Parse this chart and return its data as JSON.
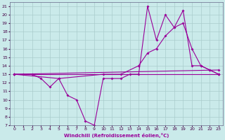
{
  "xlabel": "Windchill (Refroidissement éolien,°C)",
  "background_color": "#caeaea",
  "grid_color": "#aacccc",
  "line_color": "#990099",
  "xlim": [
    -0.5,
    23.5
  ],
  "ylim": [
    7,
    21.5
  ],
  "xticks": [
    0,
    1,
    2,
    3,
    4,
    5,
    6,
    7,
    8,
    9,
    10,
    11,
    12,
    13,
    14,
    15,
    16,
    17,
    18,
    19,
    20,
    21,
    22,
    23
  ],
  "yticks": [
    7,
    8,
    9,
    10,
    11,
    12,
    13,
    14,
    15,
    16,
    17,
    18,
    19,
    20,
    21
  ],
  "series": [
    {
      "x": [
        0,
        1,
        2,
        3,
        4,
        5,
        6,
        7,
        8,
        9,
        10,
        11,
        12,
        13,
        14,
        15,
        16,
        17,
        18,
        19,
        20,
        21,
        22,
        23
      ],
      "y": [
        13,
        13,
        13,
        12.5,
        11.5,
        12.5,
        10.5,
        10,
        7.5,
        7,
        12.5,
        12.5,
        12.5,
        13,
        13,
        21,
        17,
        20,
        18.5,
        20.5,
        14,
        14,
        13.5,
        13
      ]
    },
    {
      "x": [
        0,
        23
      ],
      "y": [
        13,
        13
      ]
    },
    {
      "x": [
        0,
        5,
        10,
        12,
        14,
        15,
        16,
        17,
        18,
        19,
        20,
        21,
        22,
        23
      ],
      "y": [
        13,
        12.5,
        13,
        13,
        14,
        15.5,
        16,
        17.5,
        18.5,
        19,
        16,
        14,
        13.5,
        13
      ]
    },
    {
      "x": [
        0,
        23
      ],
      "y": [
        13,
        13.5
      ]
    }
  ]
}
